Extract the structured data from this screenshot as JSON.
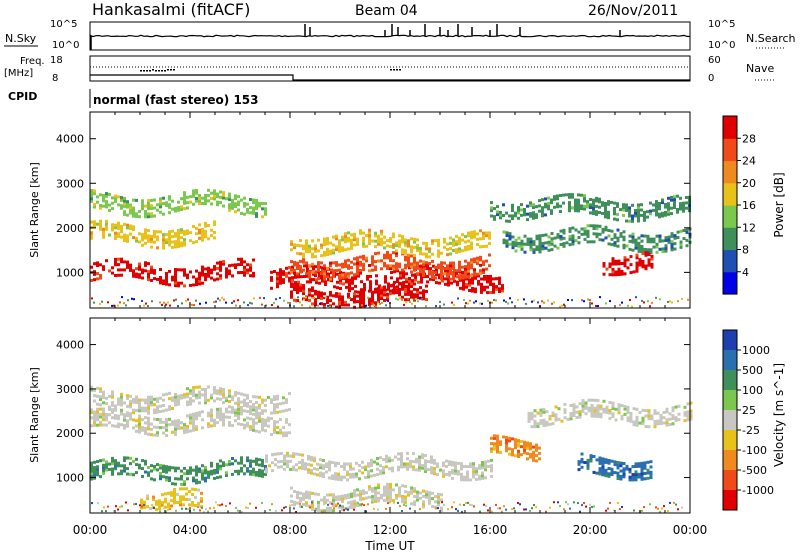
{
  "header": {
    "station": "Hankasalmi (fitACF)",
    "beam": "Beam 04",
    "date": "26/Nov/2011"
  },
  "status_panel": {
    "nsky_label": "N.Sky",
    "nsky_ticks": [
      "10^5",
      "10^0"
    ],
    "nsearch_label": "N.Search",
    "nsearch_ticks": [
      "10^5",
      "10^0"
    ],
    "freq_label_line1": "Freq.",
    "freq_label_line2": "[MHz]",
    "freq_ticks": [
      "18",
      "8"
    ],
    "nave_label": "Nave",
    "nave_ticks": [
      "60",
      "0"
    ],
    "cpid_label": "CPID",
    "cpid_text": "normal (fast stereo) 153"
  },
  "chart_data": [
    {
      "type": "heatmap",
      "panel": "power",
      "ylabel": "Slant Range [km]",
      "yticks": [
        "1000",
        "2000",
        "3000",
        "4000"
      ],
      "ylim": [
        200,
        4600
      ],
      "xlim_hours": [
        0,
        24
      ],
      "colorbar_label": "Power [dB]",
      "colorbar_ticks": [
        "4",
        "8",
        "12",
        "16",
        "20",
        "24",
        "28"
      ],
      "colorbar_colors": [
        "#0000e6",
        "#1f4fb4",
        "#3f8f5a",
        "#7ac84e",
        "#e8c21a",
        "#f08a1e",
        "#f04a18",
        "#e00000"
      ],
      "bands": [
        {
          "start": 0.0,
          "end": 6.5,
          "range": 1050,
          "level": 28
        },
        {
          "start": 0.0,
          "end": 5.0,
          "range": 1900,
          "level": 18
        },
        {
          "start": 0.0,
          "end": 7.0,
          "range": 2600,
          "level": 12
        },
        {
          "start": 7.2,
          "end": 16.5,
          "range": 900,
          "level": 28
        },
        {
          "start": 8.0,
          "end": 13.5,
          "range": 500,
          "level": 28
        },
        {
          "start": 8.0,
          "end": 16.0,
          "range": 1200,
          "level": 26
        },
        {
          "start": 8.0,
          "end": 16.0,
          "range": 1700,
          "level": 16
        },
        {
          "start": 16.5,
          "end": 24.0,
          "range": 1800,
          "level": 8
        },
        {
          "start": 16.0,
          "end": 24.0,
          "range": 2500,
          "level": 8
        },
        {
          "start": 20.5,
          "end": 22.5,
          "range": 1300,
          "level": 28
        }
      ]
    },
    {
      "type": "heatmap",
      "panel": "velocity",
      "ylabel": "Slant Range [km]",
      "yticks": [
        "1000",
        "2000",
        "3000",
        "4000"
      ],
      "ylim": [
        200,
        4600
      ],
      "xlim_hours": [
        0,
        24
      ],
      "xlabel": "Time UT",
      "xticks": [
        "00:00",
        "04:00",
        "08:00",
        "12:00",
        "16:00",
        "20:00",
        "00:00"
      ],
      "colorbar_label": "Velocity [m s^-1]",
      "colorbar_ticks": [
        "1000",
        "500",
        "100",
        "25",
        "-25",
        "-100",
        "-500",
        "-1000"
      ],
      "colorbar_colors": [
        "#1d3fb0",
        "#2a70b0",
        "#3f8f5a",
        "#7ac84e",
        "#c8c8c0",
        "#e8c21a",
        "#f08a1e",
        "#f04a18",
        "#e00000"
      ],
      "bands": [
        {
          "start": 0.0,
          "end": 7.0,
          "range": 1200,
          "level": 100
        },
        {
          "start": 0.0,
          "end": 8.0,
          "range": 2300,
          "level": 0
        },
        {
          "start": 0.0,
          "end": 8.0,
          "range": 2800,
          "level": 0
        },
        {
          "start": 2.0,
          "end": 4.5,
          "range": 500,
          "level": -100
        },
        {
          "start": 7.0,
          "end": 16.0,
          "range": 1300,
          "level": 0
        },
        {
          "start": 8.0,
          "end": 14.0,
          "range": 600,
          "level": 0
        },
        {
          "start": 16.0,
          "end": 18.0,
          "range": 1700,
          "level": -500
        },
        {
          "start": 17.5,
          "end": 24.0,
          "range": 2500,
          "level": 0
        },
        {
          "start": 19.5,
          "end": 22.5,
          "range": 1300,
          "level": 500
        }
      ]
    }
  ]
}
